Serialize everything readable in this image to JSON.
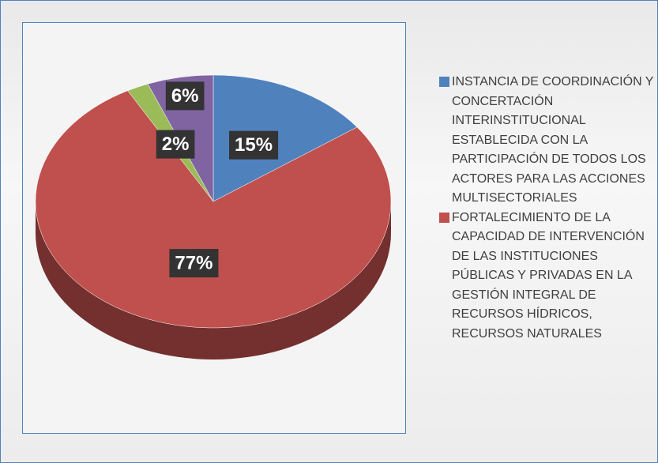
{
  "chart_data": {
    "type": "pie",
    "categories": [
      "INSTANCIA DE COORDINACIÓN Y CONCERTACIÓN INTERINSTITUCIONAL ESTABLECIDA CON LA PARTICIPACIÓN DE TODOS LOS ACTORES PARA LAS ACCIONES MULTISECTORIALES",
      "FORTALECIMIENTO DE LA CAPACIDAD DE INTERVENCIÓN DE LAS INSTITUCIONES PÚBLICAS Y PRIVADAS EN LA GESTIÓN INTEGRAL DE RECURSOS HÍDRICOS, RECURSOS NATURALES",
      null,
      null
    ],
    "values": [
      15,
      77,
      2,
      6
    ],
    "value_labels": [
      "15%",
      "77%",
      "2%",
      "6%"
    ],
    "colors": [
      "#4f81bd",
      "#c0504d",
      "#9bbb59",
      "#8064a2"
    ]
  }
}
